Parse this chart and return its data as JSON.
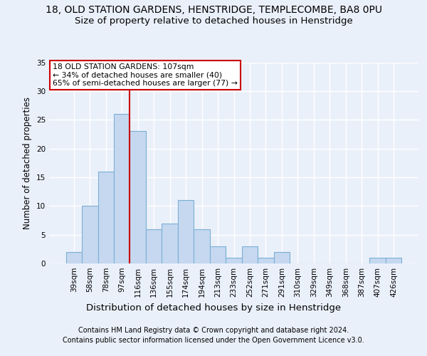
{
  "title1": "18, OLD STATION GARDENS, HENSTRIDGE, TEMPLECOMBE, BA8 0PU",
  "title2": "Size of property relative to detached houses in Henstridge",
  "xlabel": "Distribution of detached houses by size in Henstridge",
  "ylabel": "Number of detached properties",
  "categories": [
    "39sqm",
    "58sqm",
    "78sqm",
    "97sqm",
    "116sqm",
    "136sqm",
    "155sqm",
    "174sqm",
    "194sqm",
    "213sqm",
    "233sqm",
    "252sqm",
    "271sqm",
    "291sqm",
    "310sqm",
    "329sqm",
    "349sqm",
    "368sqm",
    "387sqm",
    "407sqm",
    "426sqm"
  ],
  "values": [
    2,
    10,
    16,
    26,
    23,
    6,
    7,
    11,
    6,
    3,
    1,
    3,
    1,
    2,
    0,
    0,
    0,
    0,
    0,
    1,
    1
  ],
  "bar_color": "#c5d8f0",
  "bar_edge_color": "#7bafd4",
  "vline_x": 3.5,
  "vline_color": "#cc0000",
  "annotation_line1": "18 OLD STATION GARDENS: 107sqm",
  "annotation_line2": "← 34% of detached houses are smaller (40)",
  "annotation_line3": "65% of semi-detached houses are larger (77) →",
  "annotation_box_color": "#ffffff",
  "annotation_box_edge_color": "#cc0000",
  "ylim": [
    0,
    35
  ],
  "yticks": [
    0,
    5,
    10,
    15,
    20,
    25,
    30,
    35
  ],
  "footer_line1": "Contains HM Land Registry data © Crown copyright and database right 2024.",
  "footer_line2": "Contains public sector information licensed under the Open Government Licence v3.0.",
  "bg_color": "#eaf0fa",
  "plot_bg_color": "#eaf0fa",
  "grid_color": "#ffffff",
  "title1_fontsize": 10,
  "title2_fontsize": 9.5,
  "xlabel_fontsize": 9.5,
  "ylabel_fontsize": 8.5,
  "tick_fontsize": 7.5,
  "footer_fontsize": 7.0
}
